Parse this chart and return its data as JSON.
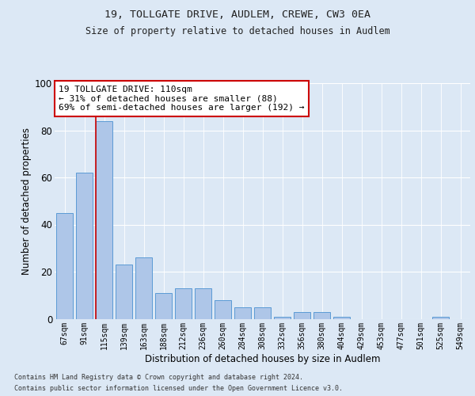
{
  "title1": "19, TOLLGATE DRIVE, AUDLEM, CREWE, CW3 0EA",
  "title2": "Size of property relative to detached houses in Audlem",
  "xlabel": "Distribution of detached houses by size in Audlem",
  "ylabel": "Number of detached properties",
  "categories": [
    "67sqm",
    "91sqm",
    "115sqm",
    "139sqm",
    "163sqm",
    "188sqm",
    "212sqm",
    "236sqm",
    "260sqm",
    "284sqm",
    "308sqm",
    "332sqm",
    "356sqm",
    "380sqm",
    "404sqm",
    "429sqm",
    "453sqm",
    "477sqm",
    "501sqm",
    "525sqm",
    "549sqm"
  ],
  "values": [
    45,
    62,
    84,
    23,
    26,
    11,
    13,
    13,
    8,
    5,
    5,
    1,
    3,
    3,
    1,
    0,
    0,
    0,
    0,
    1,
    0
  ],
  "bar_color": "#aec6e8",
  "bar_edge_color": "#5b9bd5",
  "vline_x_index": 2,
  "vline_color": "#cc0000",
  "annotation_text": "19 TOLLGATE DRIVE: 110sqm\n← 31% of detached houses are smaller (88)\n69% of semi-detached houses are larger (192) →",
  "annotation_box_color": "#ffffff",
  "annotation_box_edge": "#cc0000",
  "ylim": [
    0,
    100
  ],
  "yticks": [
    0,
    20,
    40,
    60,
    80,
    100
  ],
  "fig_bg_color": "#dce8f5",
  "plot_bg_color": "#dce8f5",
  "footer1": "Contains HM Land Registry data © Crown copyright and database right 2024.",
  "footer2": "Contains public sector information licensed under the Open Government Licence v3.0."
}
